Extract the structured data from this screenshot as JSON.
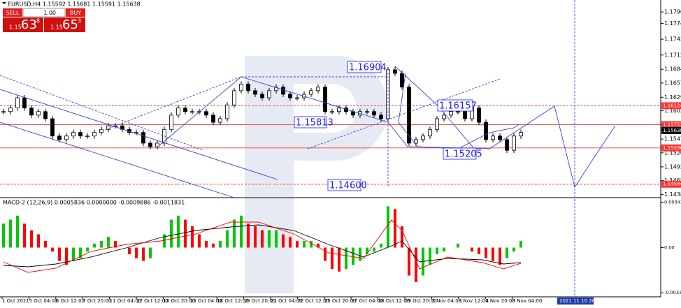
{
  "header": {
    "symbol_line": "EURUSD,H4  1.15592 1.15681 1.15591 1.15638"
  },
  "trade_panel": {
    "sell": "SELL",
    "buy": "BUY",
    "lot": "1.00",
    "sell_price": {
      "prefix": "1.15",
      "big": "63",
      "sup": "8"
    },
    "buy_price": {
      "prefix": "1.15",
      "big": "65",
      "sup": "3"
    }
  },
  "chart_data": {
    "type": "candlestick",
    "closes": [
      1.1601,
      1.1608,
      1.1628,
      1.1608,
      1.1594,
      1.1601,
      1.1587,
      1.1553,
      1.1546,
      1.1553,
      1.156,
      1.1553,
      1.1553,
      1.156,
      1.1566,
      1.1573,
      1.1573,
      1.1566,
      1.156,
      1.156,
      1.1539,
      1.1532,
      1.1539,
      1.1566,
      1.1594,
      1.1608,
      1.1601,
      1.1601,
      1.1601,
      1.1594,
      1.158,
      1.1587,
      1.1614,
      1.1642,
      1.1655,
      1.1642,
      1.1635,
      1.1628,
      1.1642,
      1.1649,
      1.1635,
      1.1628,
      1.1628,
      1.1635,
      1.1642,
      1.1649,
      1.1601,
      1.1601,
      1.1608,
      1.1601,
      1.1594,
      1.1601,
      1.1601,
      1.1594,
      1.1587,
      1.1683,
      1.1676,
      1.1649,
      1.1539,
      1.1546,
      1.1553,
      1.1566,
      1.1587,
      1.1594,
      1.1601,
      1.1601,
      1.1587,
      1.1608,
      1.158,
      1.1546,
      1.1553,
      1.1546,
      1.1525,
      1.1553,
      1.156
    ],
    "up_color": "#ffffff",
    "down_color": "#000000",
    "ylim": [
      1.1432,
      1.182
    ],
    "yticks": [
      1.17965,
      {
        "value": 1.1774,
        "label": "1.17740"
      },
      {
        "value": 1.1743,
        "label": "1.17430"
      },
      {
        "value": 1.1712,
        "label": "1.17120"
      },
      {
        "value": 1.1684,
        "label": "1.16840"
      },
      {
        "value": 1.1657,
        "label": "1.16570"
      },
      {
        "value": 1.1629,
        "label": "1.16290"
      },
      1.16025,
      1.15745,
      {
        "value": 1.1547,
        "label": "1.15470"
      },
      {
        "value": 1.152,
        "label": "1.15200"
      },
      1.14925,
      1.14655,
      {
        "value": 1.1438,
        "label": "1.14380"
      }
    ],
    "levels": [
      {
        "value": 1.16124,
        "color": "#ff3333",
        "dashed": true
      },
      {
        "value": 1.15753,
        "color": "#ff3333",
        "dashed": false
      },
      {
        "value": 1.15296,
        "color": "#ff3333",
        "dashed": false
      },
      {
        "value": 1.14584,
        "color": "#ff3333",
        "dashed": true
      }
    ],
    "current_price": 1.15638,
    "annotations": [
      "1.16904",
      "1.15813",
      "1.16157",
      "1.15205",
      "1.14600"
    ],
    "x_labels": [
      "1 Oct 2021",
      "5 Oct 04:00",
      "6 Oct 12:00",
      "7 Oct 20:00",
      "11 Oct 04:00",
      "12 Oct 12:00",
      "13 Oct 20:00",
      "15 Oct 04:00",
      "18 Oct 12:00",
      "19 Oct 20:00",
      "21 Oct 04:00",
      "22 Oct 12:00",
      "25 Oct 20:00",
      "27 Oct 04:00",
      "28 Oct 12:00",
      "29 Oct 20:00",
      "2 Nov 04:00",
      "3 Nov 12:00",
      "4 Nov 20:00",
      "8 Nov 04:00"
    ],
    "cursor_time": "2021.11.10 20:00"
  },
  "macd": {
    "title": "MACD-2 (12,26,9) 0.0005836 0.0000000 -0.0009886 -0.0011831",
    "values": [
      0.0018,
      0.0021,
      0.0024,
      0.0018,
      0.0013,
      0.001,
      0.0005,
      -0.0003,
      -0.001,
      -0.0013,
      -0.001,
      -0.0008,
      -0.0003,
      0.0003,
      0.0005,
      0.0008,
      0.0005,
      0,
      -0.0005,
      -0.0008,
      -0.001,
      -0.0008,
      0,
      0.001,
      0.0021,
      0.0024,
      0.0021,
      0.0016,
      0.001,
      0.0005,
      0.0003,
      0.0005,
      0.0013,
      0.0021,
      0.0024,
      0.0018,
      0.0016,
      0.0013,
      0.0013,
      0.0013,
      0.001,
      0.0008,
      0.0005,
      0.0005,
      0.0005,
      0.0003,
      -0.001,
      -0.0016,
      -0.0018,
      -0.0016,
      -0.0013,
      -0.001,
      -0.0005,
      -0.0003,
      0.0003,
      0.0031,
      0.0029,
      0.0016,
      -0.0021,
      -0.0026,
      -0.0021,
      -0.0013,
      -0.0005,
      -0.0003,
      0,
      0.0003,
      0,
      -0.0003,
      -0.0005,
      -0.0008,
      -0.001,
      -0.0013,
      -0.0008,
      -0.0003,
      0.0005
    ],
    "rise_color": "#00c800",
    "fall_color": "#ff0000",
    "ylim": [
      -0.0037,
      0.0037
    ],
    "yticks": [
      0.0034144,
      {
        "value": 0,
        "label": "0.00"
      },
      -0.003398
    ]
  }
}
